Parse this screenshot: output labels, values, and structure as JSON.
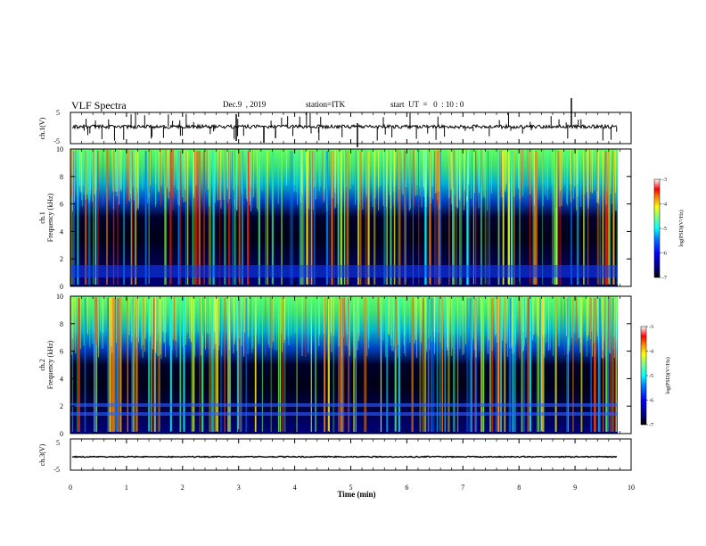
{
  "header": {
    "title": "VLF Spectra",
    "date": "Dec.9  , 2019",
    "station": "station=ITK",
    "start": "start  UT  =   0  : 10 : 0"
  },
  "chart_data": [
    {
      "type": "line",
      "panel": "ch1-waveform",
      "ylabel": "ch.1(V)",
      "ylim": [
        -5,
        5
      ],
      "yticks": [
        "5",
        "-5"
      ],
      "xlim": [
        0,
        10
      ]
    },
    {
      "type": "heatmap",
      "panel": "ch1-spectrogram",
      "ylabel_line1": "ch.1",
      "ylabel_line2": "Frequency (kHz)",
      "yticks": [
        "0",
        "2",
        "4",
        "6",
        "8",
        "10"
      ],
      "ylim": [
        0,
        10
      ],
      "xlim": [
        0,
        10
      ],
      "colorbar": {
        "label": "log(PSD)(V²/Hz)",
        "ticks": [
          "-3",
          "-4",
          "-5",
          "-6",
          "-7"
        ],
        "range": [
          -7,
          -3
        ]
      }
    },
    {
      "type": "heatmap",
      "panel": "ch2-spectrogram",
      "ylabel_line1": "ch.2",
      "ylabel_line2": "Frequency (kHz)",
      "yticks": [
        "0",
        "2",
        "4",
        "6",
        "8",
        "10"
      ],
      "ylim": [
        0,
        10
      ],
      "xlim": [
        0,
        10
      ],
      "colorbar": {
        "label": "log(PSD)(V²/Hz)",
        "ticks": [
          "-3",
          "-4",
          "-5",
          "-6",
          "-7"
        ],
        "range": [
          -7,
          -3
        ]
      }
    },
    {
      "type": "line",
      "panel": "ch3-waveform",
      "ylabel": "ch.3(V)",
      "ylim": [
        -5,
        5
      ],
      "yticks": [
        "5",
        "-5"
      ],
      "xlim": [
        0,
        10
      ]
    }
  ],
  "xaxis": {
    "label": "Time (min)",
    "ticks": [
      "0",
      "1",
      "2",
      "3",
      "4",
      "5",
      "6",
      "7",
      "8",
      "9",
      "10"
    ]
  },
  "colors": {
    "colormap": [
      "#00007f",
      "#0000ff",
      "#0080ff",
      "#00ffff",
      "#80ff80",
      "#ffff00",
      "#ff8000",
      "#ff0000",
      "#ffffff"
    ],
    "background_spectrum": "#000010"
  }
}
